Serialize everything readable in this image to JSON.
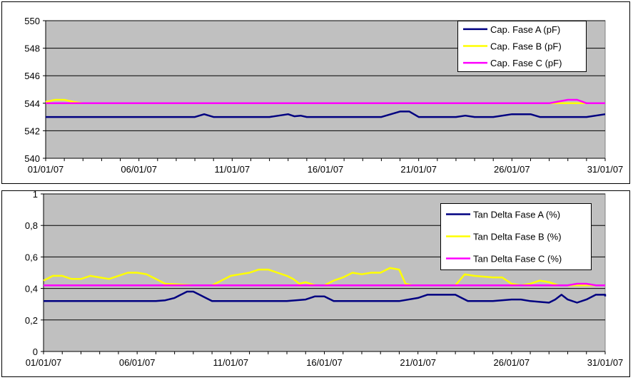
{
  "chart_data": [
    {
      "type": "line",
      "title": "",
      "xlabel": "",
      "ylabel": "",
      "xlim": [
        "01/01/07",
        "31/01/07"
      ],
      "ylim": [
        540,
        550
      ],
      "x_ticks": [
        "01/01/07",
        "06/01/07",
        "11/01/07",
        "16/01/07",
        "21/01/07",
        "26/01/07",
        "31/01/07"
      ],
      "y_ticks": [
        "540",
        "542",
        "544",
        "546",
        "548",
        "550"
      ],
      "grid": "horizontal",
      "legend_position": "top-right",
      "plot_background": "#c0c0c0",
      "series": [
        {
          "name": "Cap. Fase A (pF)",
          "color": "#000080",
          "points": [
            [
              "01/01/07",
              543.0
            ],
            [
              "09/01/07",
              543.0
            ],
            [
              "09/01/07",
              543.2
            ],
            [
              "10/01/07",
              543.0
            ],
            [
              "13/01/07",
              543.0
            ],
            [
              "14/01/07",
              543.2
            ],
            [
              "14/01/07",
              543.05
            ],
            [
              "14/01/07",
              543.1
            ],
            [
              "15/01/07",
              543.0
            ],
            [
              "19/01/07",
              543.0
            ],
            [
              "20/01/07",
              543.4
            ],
            [
              "20/01/07",
              543.4
            ],
            [
              "21/01/07",
              543.0
            ],
            [
              "23/01/07",
              543.0
            ],
            [
              "23/01/07",
              543.1
            ],
            [
              "24/01/07",
              543.0
            ],
            [
              "25/01/07",
              543.0
            ],
            [
              "26/01/07",
              543.2
            ],
            [
              "27/01/07",
              543.2
            ],
            [
              "27/01/07",
              543.0
            ],
            [
              "30/01/07",
              543.0
            ],
            [
              "31/01/07",
              543.2
            ]
          ]
        },
        {
          "name": "Cap. Fase B (pF)",
          "color": "#ffff00",
          "points": [
            [
              "01/01/07",
              544.1
            ],
            [
              "01/01/07",
              544.25
            ],
            [
              "02/01/07",
              544.25
            ],
            [
              "02/01/07",
              544.1
            ],
            [
              "03/01/07",
              544.0
            ],
            [
              "29/01/07",
              544.0
            ],
            [
              "30/01/07",
              544.0
            ],
            [
              "31/01/07",
              544.0
            ]
          ]
        },
        {
          "name": "Cap. Fase C (pF)",
          "color": "#ff00ff",
          "points": [
            [
              "01/01/07",
              544.0
            ],
            [
              "28/01/07",
              544.0
            ],
            [
              "29/01/07",
              544.25
            ],
            [
              "29/01/07",
              544.25
            ],
            [
              "30/01/07",
              544.0
            ],
            [
              "31/01/07",
              544.0
            ]
          ]
        }
      ]
    },
    {
      "type": "line",
      "title": "",
      "xlabel": "",
      "ylabel": "",
      "xlim": [
        "01/01/07",
        "31/01/07"
      ],
      "ylim": [
        0,
        1
      ],
      "x_ticks": [
        "01/01/07",
        "06/01/07",
        "11/01/07",
        "16/01/07",
        "21/01/07",
        "26/01/07",
        "31/01/07"
      ],
      "y_ticks": [
        "0",
        "0,2",
        "0,4",
        "0,6",
        "0,8",
        "1"
      ],
      "grid": "horizontal",
      "legend_position": "top-right",
      "plot_background": "#c0c0c0",
      "series": [
        {
          "name": "Tan Delta Fase A (%)",
          "color": "#000080",
          "points": [
            [
              "01/01/07",
              0.32
            ],
            [
              "07/01/07",
              0.32
            ],
            [
              "07/01/07",
              0.325
            ],
            [
              "08/01/07",
              0.34
            ],
            [
              "08/01/07",
              0.36
            ],
            [
              "08/01/07",
              0.38
            ],
            [
              "09/01/07",
              0.38
            ],
            [
              "09/01/07",
              0.36
            ],
            [
              "09/01/07",
              0.34
            ],
            [
              "10/01/07",
              0.32
            ],
            [
              "14/01/07",
              0.32
            ],
            [
              "15/01/07",
              0.33
            ],
            [
              "15/01/07",
              0.35
            ],
            [
              "16/01/07",
              0.35
            ],
            [
              "16/01/07",
              0.32
            ],
            [
              "20/01/07",
              0.32
            ],
            [
              "21/01/07",
              0.34
            ],
            [
              "21/01/07",
              0.36
            ],
            [
              "22/01/07",
              0.36
            ],
            [
              "23/01/07",
              0.36
            ],
            [
              "23/01/07",
              0.34
            ],
            [
              "23/01/07",
              0.32
            ],
            [
              "25/01/07",
              0.32
            ],
            [
              "26/01/07",
              0.33
            ],
            [
              "26/01/07",
              0.33
            ],
            [
              "27/01/07",
              0.32
            ],
            [
              "28/01/07",
              0.31
            ],
            [
              "28/01/07",
              0.33
            ],
            [
              "28/01/07",
              0.36
            ],
            [
              "29/01/07",
              0.33
            ],
            [
              "29/01/07",
              0.31
            ],
            [
              "30/01/07",
              0.33
            ],
            [
              "30/01/07",
              0.36
            ],
            [
              "31/01/07",
              0.36
            ],
            [
              "31/01/07",
              0.35
            ]
          ]
        },
        {
          "name": "Tan Delta Fase B (%)",
          "color": "#ffff00",
          "points": [
            [
              "01/01/07",
              0.45
            ],
            [
              "01/01/07",
              0.48
            ],
            [
              "02/01/07",
              0.48
            ],
            [
              "02/01/07",
              0.46
            ],
            [
              "03/01/07",
              0.46
            ],
            [
              "03/01/07",
              0.48
            ],
            [
              "04/01/07",
              0.47
            ],
            [
              "04/01/07",
              0.46
            ],
            [
              "05/01/07",
              0.48
            ],
            [
              "05/01/07",
              0.5
            ],
            [
              "06/01/07",
              0.5
            ],
            [
              "06/01/07",
              0.49
            ],
            [
              "07/01/07",
              0.46
            ],
            [
              "07/01/07",
              0.43
            ],
            [
              "09/01/07",
              0.42
            ],
            [
              "10/01/07",
              0.42
            ],
            [
              "10/01/07",
              0.45
            ],
            [
              "11/01/07",
              0.48
            ],
            [
              "11/01/07",
              0.49
            ],
            [
              "12/01/07",
              0.5
            ],
            [
              "12/01/07",
              0.52
            ],
            [
              "13/01/07",
              0.52
            ],
            [
              "13/01/07",
              0.5
            ],
            [
              "14/01/07",
              0.48
            ],
            [
              "14/01/07",
              0.46
            ],
            [
              "14/01/07",
              0.43
            ],
            [
              "15/01/07",
              0.44
            ],
            [
              "15/01/07",
              0.42
            ],
            [
              "16/01/07",
              0.42
            ],
            [
              "16/01/07",
              0.45
            ],
            [
              "17/01/07",
              0.47
            ],
            [
              "17/01/07",
              0.5
            ],
            [
              "18/01/07",
              0.49
            ],
            [
              "18/01/07",
              0.5
            ],
            [
              "19/01/07",
              0.5
            ],
            [
              "19/01/07",
              0.53
            ],
            [
              "20/01/07",
              0.52
            ],
            [
              "20/01/07",
              0.43
            ],
            [
              "20/01/07",
              0.42
            ],
            [
              "23/01/07",
              0.42
            ],
            [
              "23/01/07",
              0.49
            ],
            [
              "24/01/07",
              0.48
            ],
            [
              "25/01/07",
              0.47
            ],
            [
              "25/01/07",
              0.47
            ],
            [
              "26/01/07",
              0.43
            ],
            [
              "26/01/07",
              0.42
            ],
            [
              "27/01/07",
              0.43
            ],
            [
              "27/01/07",
              0.45
            ],
            [
              "28/01/07",
              0.44
            ],
            [
              "28/01/07",
              0.42
            ],
            [
              "31/01/07",
              0.42
            ]
          ]
        },
        {
          "name": "Tan Delta Fase C (%)",
          "color": "#ff00ff",
          "points": [
            [
              "01/01/07",
              0.42
            ],
            [
              "29/01/07",
              0.42
            ],
            [
              "29/01/07",
              0.43
            ],
            [
              "30/01/07",
              0.43
            ],
            [
              "30/01/07",
              0.42
            ],
            [
              "31/01/07",
              0.42
            ]
          ]
        }
      ]
    }
  ]
}
